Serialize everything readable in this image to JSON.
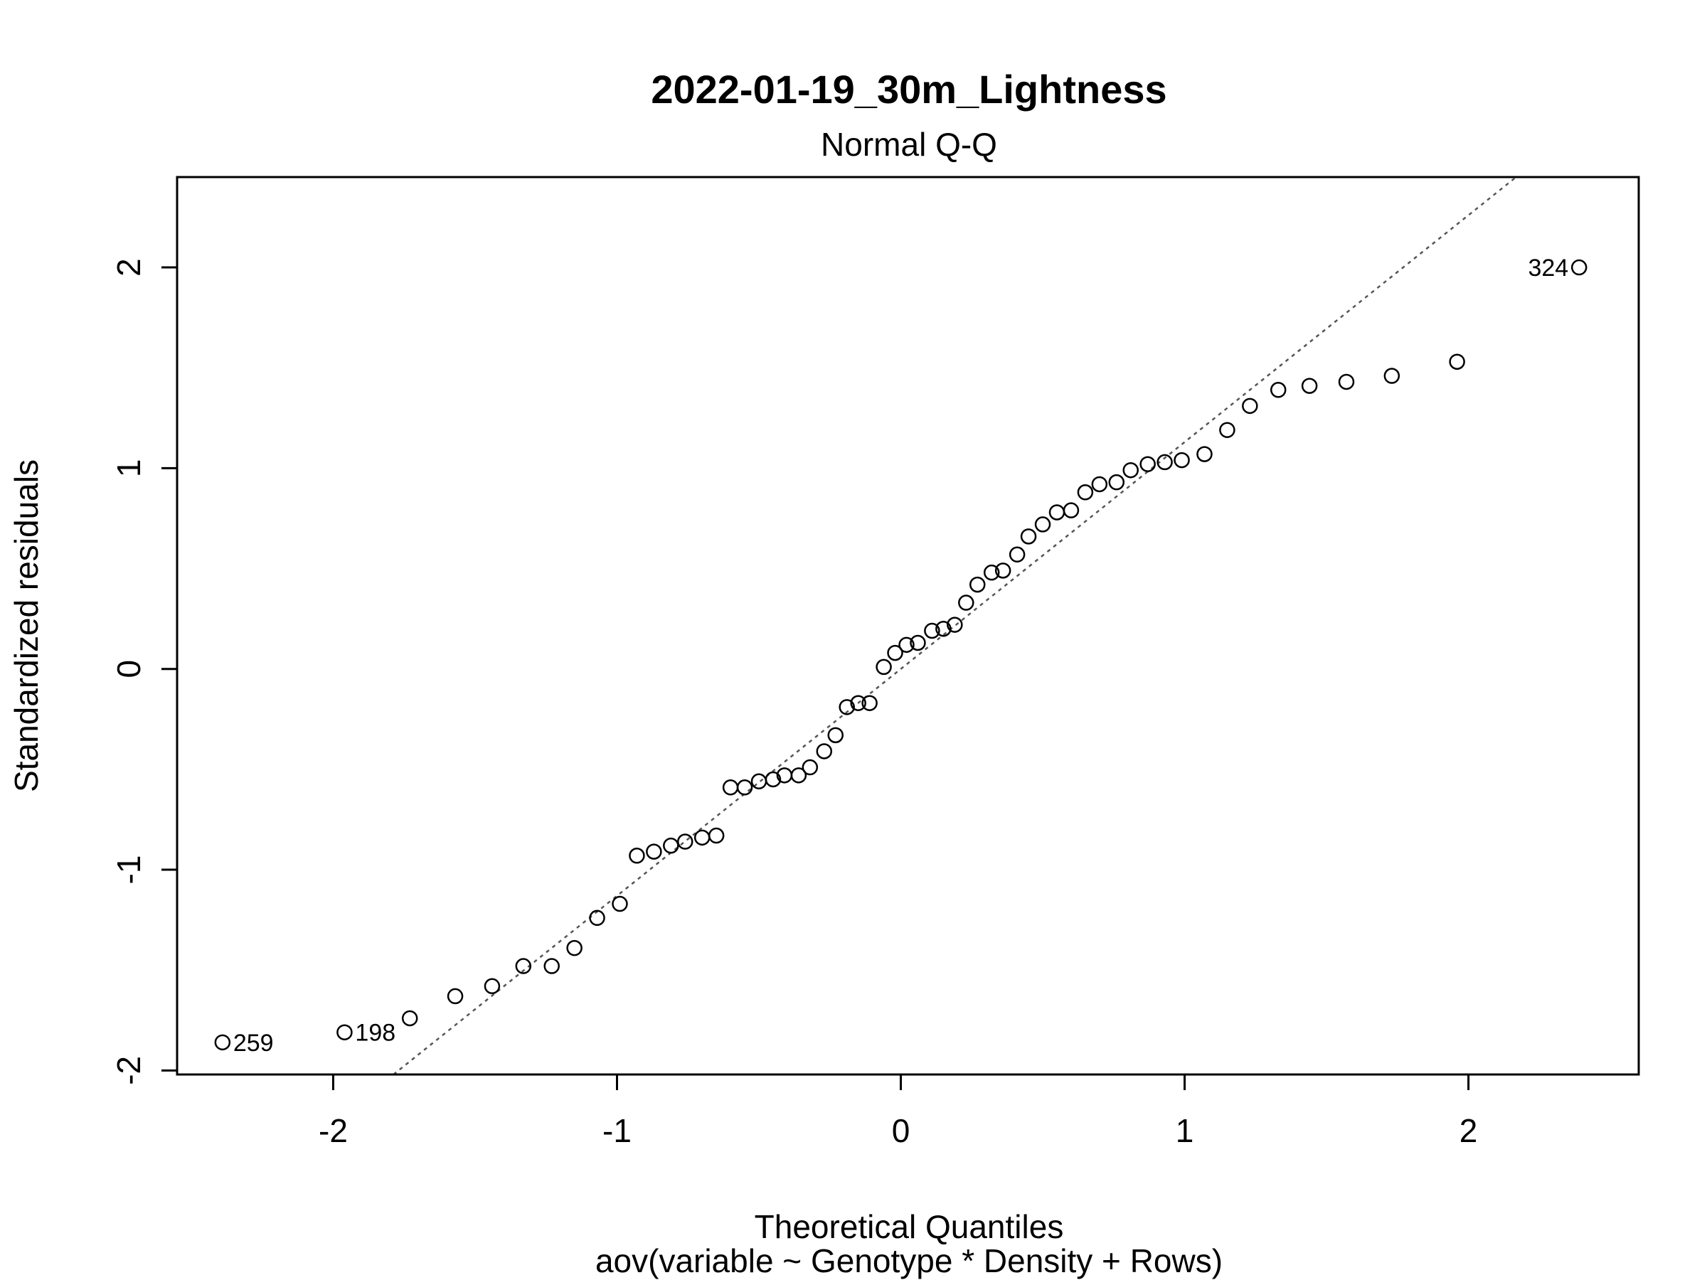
{
  "chart_data": {
    "type": "scatter",
    "title": "2022-01-19_30m_Lightness",
    "subtitle": "Normal Q-Q",
    "xlabel": "Theoretical Quantiles",
    "xlabel2": "aov(variable ~ Genotype * Density + Rows)",
    "ylabel": "Standardized residuals",
    "xlim": [
      -2.55,
      2.6
    ],
    "ylim": [
      -2.02,
      2.45
    ],
    "x_ticks": [
      -2,
      -1,
      0,
      1,
      2
    ],
    "y_ticks": [
      -2,
      -1,
      0,
      1,
      2
    ],
    "x_tick_labels": [
      "-2",
      "-1",
      "0",
      "1",
      "2"
    ],
    "y_tick_labels": [
      "-2",
      "-1",
      "0",
      "1",
      "2"
    ],
    "reference_line": {
      "slope": 1.13,
      "intercept": 0.0
    },
    "labeled_points": [
      {
        "label": "259",
        "x": -2.39,
        "y": -1.86
      },
      {
        "label": "198",
        "x": -1.96,
        "y": -1.81
      },
      {
        "label": "324",
        "x": 2.39,
        "y": 2.0
      }
    ],
    "points": [
      {
        "x": -2.39,
        "y": -1.86
      },
      {
        "x": -1.96,
        "y": -1.81
      },
      {
        "x": -1.73,
        "y": -1.74
      },
      {
        "x": -1.57,
        "y": -1.63
      },
      {
        "x": -1.44,
        "y": -1.58
      },
      {
        "x": -1.33,
        "y": -1.48
      },
      {
        "x": -1.23,
        "y": -1.48
      },
      {
        "x": -1.15,
        "y": -1.39
      },
      {
        "x": -1.07,
        "y": -1.24
      },
      {
        "x": -0.99,
        "y": -1.17
      },
      {
        "x": -0.93,
        "y": -0.93
      },
      {
        "x": -0.87,
        "y": -0.91
      },
      {
        "x": -0.81,
        "y": -0.88
      },
      {
        "x": -0.76,
        "y": -0.86
      },
      {
        "x": -0.7,
        "y": -0.84
      },
      {
        "x": -0.65,
        "y": -0.83
      },
      {
        "x": -0.6,
        "y": -0.59
      },
      {
        "x": -0.55,
        "y": -0.59
      },
      {
        "x": -0.5,
        "y": -0.56
      },
      {
        "x": -0.45,
        "y": -0.55
      },
      {
        "x": -0.41,
        "y": -0.53
      },
      {
        "x": -0.36,
        "y": -0.53
      },
      {
        "x": -0.32,
        "y": -0.49
      },
      {
        "x": -0.27,
        "y": -0.41
      },
      {
        "x": -0.23,
        "y": -0.33
      },
      {
        "x": -0.19,
        "y": -0.19
      },
      {
        "x": -0.15,
        "y": -0.17
      },
      {
        "x": -0.11,
        "y": -0.17
      },
      {
        "x": -0.06,
        "y": 0.01
      },
      {
        "x": -0.02,
        "y": 0.08
      },
      {
        "x": 0.02,
        "y": 0.12
      },
      {
        "x": 0.06,
        "y": 0.13
      },
      {
        "x": 0.11,
        "y": 0.19
      },
      {
        "x": 0.15,
        "y": 0.2
      },
      {
        "x": 0.19,
        "y": 0.22
      },
      {
        "x": 0.23,
        "y": 0.33
      },
      {
        "x": 0.27,
        "y": 0.42
      },
      {
        "x": 0.32,
        "y": 0.48
      },
      {
        "x": 0.36,
        "y": 0.49
      },
      {
        "x": 0.41,
        "y": 0.57
      },
      {
        "x": 0.45,
        "y": 0.66
      },
      {
        "x": 0.5,
        "y": 0.72
      },
      {
        "x": 0.55,
        "y": 0.78
      },
      {
        "x": 0.6,
        "y": 0.79
      },
      {
        "x": 0.65,
        "y": 0.88
      },
      {
        "x": 0.7,
        "y": 0.92
      },
      {
        "x": 0.76,
        "y": 0.93
      },
      {
        "x": 0.81,
        "y": 0.99
      },
      {
        "x": 0.87,
        "y": 1.02
      },
      {
        "x": 0.93,
        "y": 1.03
      },
      {
        "x": 0.99,
        "y": 1.04
      },
      {
        "x": 1.07,
        "y": 1.07
      },
      {
        "x": 1.15,
        "y": 1.19
      },
      {
        "x": 1.23,
        "y": 1.31
      },
      {
        "x": 1.33,
        "y": 1.39
      },
      {
        "x": 1.44,
        "y": 1.41
      },
      {
        "x": 1.57,
        "y": 1.43
      },
      {
        "x": 1.73,
        "y": 1.46
      },
      {
        "x": 1.96,
        "y": 1.53
      },
      {
        "x": 2.39,
        "y": 2.0
      }
    ],
    "grid": false,
    "legend": "none",
    "colors": {
      "points": "#000000",
      "reference_line": "#555555"
    }
  }
}
